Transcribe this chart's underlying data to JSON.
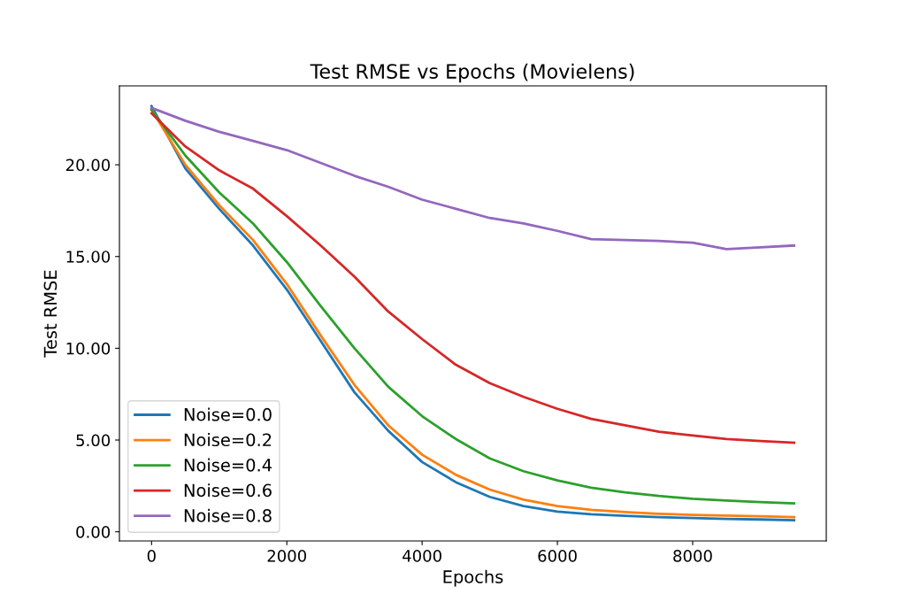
{
  "chart_data": {
    "type": "line",
    "title": "Test RMSE vs Epochs (Movielens)",
    "xlabel": "Epochs",
    "ylabel": "Test RMSE",
    "x": [
      0,
      500,
      1000,
      1500,
      2000,
      2500,
      3000,
      3500,
      4000,
      4500,
      5000,
      5500,
      6000,
      6500,
      7000,
      7500,
      8000,
      8500,
      9000,
      9500
    ],
    "series": [
      {
        "name": "Noise=0.0",
        "color": "#1f77b4",
        "values": [
          23.2,
          19.8,
          17.6,
          15.6,
          13.2,
          10.4,
          7.6,
          5.5,
          3.8,
          2.7,
          1.9,
          1.4,
          1.1,
          0.95,
          0.87,
          0.8,
          0.75,
          0.7,
          0.67,
          0.63
        ]
      },
      {
        "name": "Noise=0.2",
        "color": "#ff7f0e",
        "values": [
          23.0,
          20.0,
          17.8,
          15.9,
          13.5,
          10.7,
          8.0,
          5.8,
          4.2,
          3.1,
          2.3,
          1.75,
          1.4,
          1.2,
          1.07,
          0.98,
          0.92,
          0.88,
          0.84,
          0.8
        ]
      },
      {
        "name": "Noise=0.4",
        "color": "#2ca02c",
        "values": [
          23.0,
          20.5,
          18.5,
          16.8,
          14.7,
          12.3,
          10.0,
          7.9,
          6.3,
          5.05,
          4.0,
          3.3,
          2.8,
          2.4,
          2.15,
          1.95,
          1.8,
          1.7,
          1.62,
          1.55
        ]
      },
      {
        "name": "Noise=0.6",
        "color": "#d62728",
        "values": [
          22.8,
          21.0,
          19.7,
          18.7,
          17.2,
          15.6,
          13.9,
          12.0,
          10.5,
          9.1,
          8.1,
          7.35,
          6.7,
          6.15,
          5.8,
          5.45,
          5.25,
          5.05,
          4.95,
          4.85
        ]
      },
      {
        "name": "Noise=0.8",
        "color": "#9467bd",
        "values": [
          23.1,
          22.4,
          21.8,
          21.3,
          20.8,
          20.1,
          19.4,
          18.8,
          18.1,
          17.6,
          17.1,
          16.8,
          16.4,
          15.95,
          15.9,
          15.85,
          15.75,
          15.4,
          15.5,
          15.6
        ]
      }
    ],
    "xlim": [
      -475,
      9975
    ],
    "xticks": [
      0,
      2000,
      4000,
      6000,
      8000
    ],
    "ylim": [
      -0.5,
      24.3
    ],
    "yticks": [
      {
        "value": 0,
        "label": "0.00"
      },
      {
        "value": 5,
        "label": "5.00"
      },
      {
        "value": 10,
        "label": "10.00"
      },
      {
        "value": 15,
        "label": "15.00"
      },
      {
        "value": 20,
        "label": "20.00"
      }
    ],
    "legend": "bottom left",
    "grid": false,
    "marker": "none",
    "line_style": "solid"
  }
}
